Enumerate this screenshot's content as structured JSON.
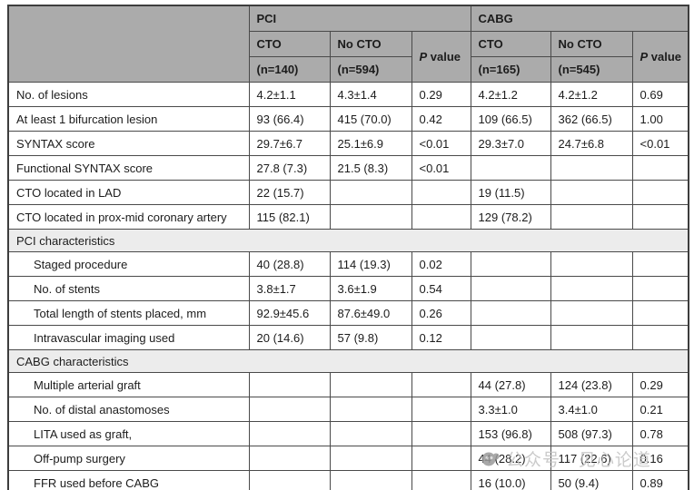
{
  "colors": {
    "header_bg": "#ababab",
    "section_bg": "#ececec",
    "border": "#4a4a4a",
    "text": "#1c1c1c",
    "watermark": "#c3c3c3"
  },
  "header": {
    "groups": [
      {
        "label": "PCI",
        "subcols": [
          {
            "label": "CTO",
            "n": "(n=140)"
          },
          {
            "label": "No CTO",
            "n": "(n=594)"
          }
        ],
        "p": {
          "italic": "P",
          "rest": " value"
        }
      },
      {
        "label": "CABG",
        "subcols": [
          {
            "label": "CTO",
            "n": "(n=165)"
          },
          {
            "label": "No CTO",
            "n": "(n=545)"
          }
        ],
        "p": {
          "italic": "P",
          "rest": " value"
        }
      }
    ]
  },
  "rows": [
    {
      "type": "data",
      "indent": false,
      "label": "No. of lesions",
      "cells": [
        "4.2±1.1",
        "4.3±1.4",
        "0.29",
        "4.2±1.2",
        "4.2±1.2",
        "0.69"
      ]
    },
    {
      "type": "data",
      "indent": false,
      "label": "At least 1 bifurcation lesion",
      "cells": [
        "93 (66.4)",
        "415 (70.0)",
        "0.42",
        "109 (66.5)",
        "362 (66.5)",
        "1.00"
      ]
    },
    {
      "type": "data",
      "indent": false,
      "label": "SYNTAX score",
      "cells": [
        "29.7±6.7",
        "25.1±6.9",
        "<0.01",
        "29.3±7.0",
        "24.7±6.8",
        "<0.01"
      ]
    },
    {
      "type": "data",
      "indent": false,
      "label": "Functional SYNTAX score",
      "cells": [
        "27.8 (7.3)",
        "21.5 (8.3)",
        "<0.01",
        "",
        "",
        ""
      ]
    },
    {
      "type": "data",
      "indent": false,
      "label": "CTO located in LAD",
      "cells": [
        "22 (15.7)",
        "",
        "",
        "19 (11.5)",
        "",
        ""
      ]
    },
    {
      "type": "data",
      "indent": false,
      "label": "CTO located in prox-mid coronary artery",
      "cells": [
        "115 (82.1)",
        "",
        "",
        "129 (78.2)",
        "",
        ""
      ]
    },
    {
      "type": "section",
      "label": "PCI characteristics"
    },
    {
      "type": "data",
      "indent": true,
      "label": "Staged procedure",
      "cells": [
        "40 (28.8)",
        "114 (19.3)",
        "0.02",
        "",
        "",
        ""
      ]
    },
    {
      "type": "data",
      "indent": true,
      "label": "No. of stents",
      "cells": [
        "3.8±1.7",
        "3.6±1.9",
        "0.54",
        "",
        "",
        ""
      ]
    },
    {
      "type": "data",
      "indent": true,
      "label": "Total length of stents placed, mm",
      "cells": [
        "92.9±45.6",
        "87.6±49.0",
        "0.26",
        "",
        "",
        ""
      ]
    },
    {
      "type": "data",
      "indent": true,
      "label": "Intravascular imaging used",
      "cells": [
        "20 (14.6)",
        "57 (9.8)",
        "0.12",
        "",
        "",
        ""
      ]
    },
    {
      "type": "section",
      "label": "CABG characteristics"
    },
    {
      "type": "data",
      "indent": true,
      "label": "Multiple arterial graft",
      "cells": [
        "",
        "",
        "",
        "44 (27.8)",
        "124 (23.8)",
        "0.29"
      ]
    },
    {
      "type": "data",
      "indent": true,
      "label": "No. of distal anastomoses",
      "cells": [
        "",
        "",
        "",
        "3.3±1.0",
        "3.4±1.0",
        "0.21"
      ]
    },
    {
      "type": "data",
      "indent": true,
      "label": "LITA used as graft,",
      "cells": [
        "",
        "",
        "",
        "153 (96.8)",
        "508 (97.3)",
        "0.78"
      ]
    },
    {
      "type": "data",
      "indent": true,
      "label": "Off-pump surgery",
      "cells": [
        "",
        "",
        "",
        "44 (28.2)",
        "117 (22.6)",
        "0.16"
      ]
    },
    {
      "type": "data",
      "indent": true,
      "label": "FFR used before CABG",
      "cells": [
        "",
        "",
        "",
        "16 (10.0)",
        "50 (9.4)",
        "0.89"
      ]
    }
  ],
  "watermark": {
    "text": "公众号 · 见心论道"
  }
}
